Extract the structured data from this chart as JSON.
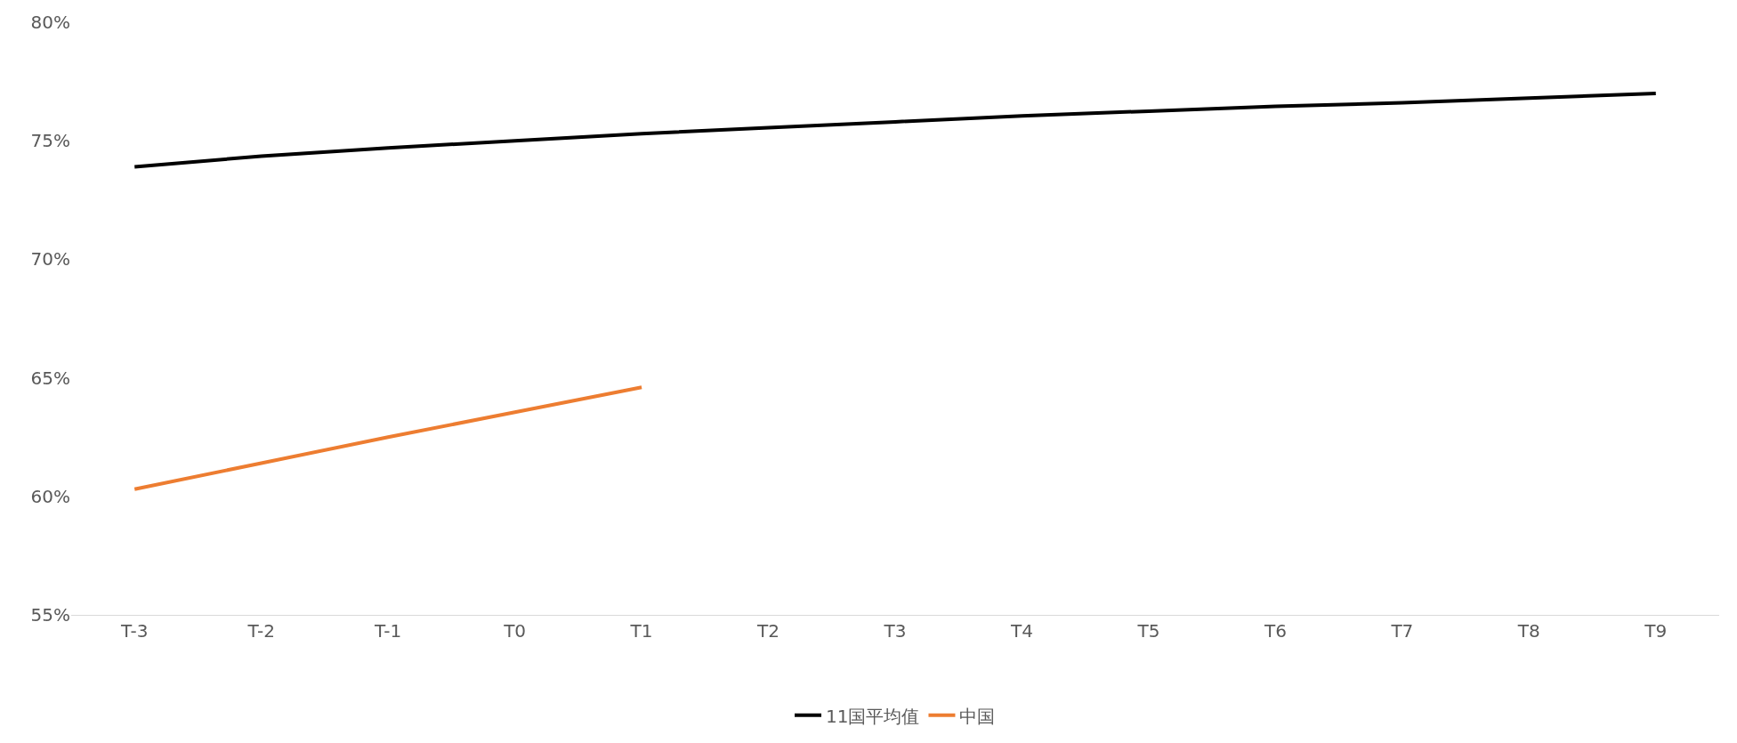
{
  "chart_data": {
    "type": "line",
    "categories": [
      "T-3",
      "T-2",
      "T-1",
      "T0",
      "T1",
      "T2",
      "T3",
      "T4",
      "T5",
      "T6",
      "T7",
      "T8",
      "T9"
    ],
    "series": [
      {
        "name": "11国平均值",
        "color": "#000000",
        "values": [
          73.9,
          74.35,
          74.7,
          75.0,
          75.3,
          75.55,
          75.8,
          76.05,
          76.25,
          76.45,
          76.6,
          76.8,
          77.0
        ]
      },
      {
        "name": "中国",
        "color": "#ed7d31",
        "values": [
          60.3,
          61.4,
          62.5,
          63.55,
          64.6,
          null,
          null,
          null,
          null,
          null,
          null,
          null,
          null
        ]
      }
    ],
    "ylim": [
      55,
      80
    ],
    "yticks": [
      {
        "value": 55,
        "label": "55%"
      },
      {
        "value": 60,
        "label": "60%"
      },
      {
        "value": 65,
        "label": "65%"
      },
      {
        "value": 70,
        "label": "70%"
      },
      {
        "value": 75,
        "label": "75%"
      },
      {
        "value": 80,
        "label": "80%"
      }
    ],
    "grid": false,
    "legend": "bottom",
    "marker": "none",
    "line_style": "solid"
  }
}
